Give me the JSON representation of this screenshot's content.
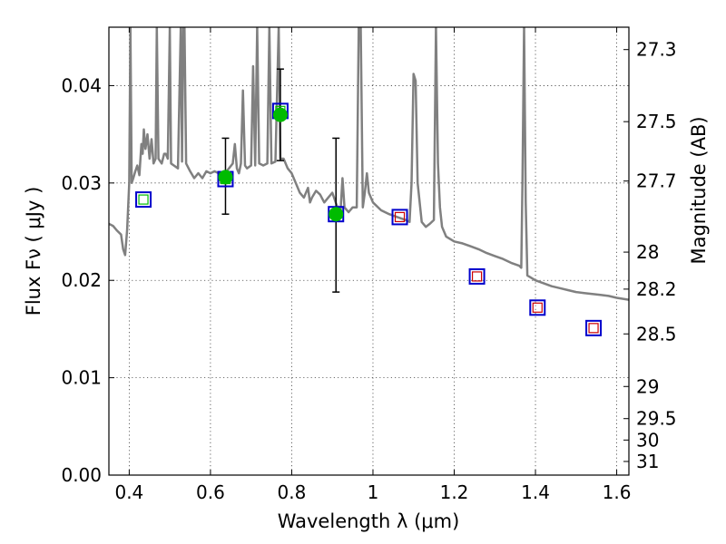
{
  "chart_data": {
    "type": "scatter",
    "title": "",
    "xlabel": "Wavelength  λ (μm)",
    "ylabel": "Flux  Fν  ( μJy )",
    "ylabel_right": "Magnitude (AB)",
    "xlim": [
      0.35,
      1.63
    ],
    "ylim": [
      0.0,
      0.046
    ],
    "grid": true,
    "x_ticks": [
      0.4,
      0.6,
      0.8,
      1.0,
      1.2,
      1.4,
      1.6
    ],
    "x_tick_labels": [
      "0.4",
      "0.6",
      "0.8",
      "1",
      "1.2",
      "1.4",
      "1.6"
    ],
    "y_ticks": [
      0.0,
      0.01,
      0.02,
      0.03,
      0.04
    ],
    "y_tick_labels": [
      "0.00",
      "0.01",
      "0.02",
      "0.03",
      "0.04"
    ],
    "right_ticks": [
      {
        "label": "27.3",
        "flux": 0.0437
      },
      {
        "label": "27.5",
        "flux": 0.0363
      },
      {
        "label": "27.7",
        "flux": 0.0302
      },
      {
        "label": "28",
        "flux": 0.0229
      },
      {
        "label": "28.2",
        "flux": 0.0191
      },
      {
        "label": "28.5",
        "flux": 0.0145
      },
      {
        "label": "29",
        "flux": 0.0091
      },
      {
        "label": "29.5",
        "flux": 0.0058
      },
      {
        "label": "30",
        "flux": 0.0036
      },
      {
        "label": "31",
        "flux": 0.0014
      }
    ],
    "series": [
      {
        "kind": "spectrum",
        "color": "#808080",
        "points": [
          [
            0.35,
            0.0258
          ],
          [
            0.36,
            0.0256
          ],
          [
            0.37,
            0.0251
          ],
          [
            0.38,
            0.0247
          ],
          [
            0.385,
            0.0232
          ],
          [
            0.39,
            0.0226
          ],
          [
            0.395,
            0.0252
          ],
          [
            0.4,
            0.03
          ],
          [
            0.403,
            0.046
          ],
          [
            0.406,
            0.03
          ],
          [
            0.41,
            0.0305
          ],
          [
            0.415,
            0.0312
          ],
          [
            0.42,
            0.0318
          ],
          [
            0.425,
            0.0308
          ],
          [
            0.43,
            0.034
          ],
          [
            0.433,
            0.033
          ],
          [
            0.436,
            0.0355
          ],
          [
            0.44,
            0.0335
          ],
          [
            0.445,
            0.035
          ],
          [
            0.45,
            0.0325
          ],
          [
            0.455,
            0.0345
          ],
          [
            0.46,
            0.032
          ],
          [
            0.465,
            0.0325
          ],
          [
            0.468,
            0.046
          ],
          [
            0.472,
            0.0325
          ],
          [
            0.48,
            0.032
          ],
          [
            0.486,
            0.033
          ],
          [
            0.49,
            0.033
          ],
          [
            0.495,
            0.0325
          ],
          [
            0.5,
            0.046
          ],
          [
            0.503,
            0.032
          ],
          [
            0.51,
            0.0318
          ],
          [
            0.52,
            0.0315
          ],
          [
            0.527,
            0.046
          ],
          [
            0.53,
            0.0322
          ],
          [
            0.533,
            0.046
          ],
          [
            0.536,
            0.046
          ],
          [
            0.54,
            0.032
          ],
          [
            0.55,
            0.0312
          ],
          [
            0.56,
            0.0305
          ],
          [
            0.57,
            0.031
          ],
          [
            0.58,
            0.0305
          ],
          [
            0.59,
            0.0312
          ],
          [
            0.6,
            0.031
          ],
          [
            0.61,
            0.0312
          ],
          [
            0.62,
            0.031
          ],
          [
            0.64,
            0.0312
          ],
          [
            0.655,
            0.032
          ],
          [
            0.66,
            0.034
          ],
          [
            0.665,
            0.0315
          ],
          [
            0.67,
            0.031
          ],
          [
            0.675,
            0.032
          ],
          [
            0.68,
            0.0395
          ],
          [
            0.685,
            0.0318
          ],
          [
            0.69,
            0.0315
          ],
          [
            0.7,
            0.0318
          ],
          [
            0.705,
            0.042
          ],
          [
            0.71,
            0.0318
          ],
          [
            0.715,
            0.046
          ],
          [
            0.72,
            0.032
          ],
          [
            0.73,
            0.0318
          ],
          [
            0.74,
            0.032
          ],
          [
            0.745,
            0.046
          ],
          [
            0.75,
            0.032
          ],
          [
            0.76,
            0.0322
          ],
          [
            0.768,
            0.046
          ],
          [
            0.772,
            0.0325
          ],
          [
            0.78,
            0.0325
          ],
          [
            0.79,
            0.0315
          ],
          [
            0.8,
            0.031
          ],
          [
            0.81,
            0.03
          ],
          [
            0.82,
            0.029
          ],
          [
            0.83,
            0.0285
          ],
          [
            0.84,
            0.0295
          ],
          [
            0.845,
            0.028
          ],
          [
            0.85,
            0.0285
          ],
          [
            0.86,
            0.0292
          ],
          [
            0.87,
            0.0288
          ],
          [
            0.88,
            0.028
          ],
          [
            0.89,
            0.0285
          ],
          [
            0.9,
            0.029
          ],
          [
            0.91,
            0.0278
          ],
          [
            0.92,
            0.027
          ],
          [
            0.925,
            0.0305
          ],
          [
            0.93,
            0.0275
          ],
          [
            0.94,
            0.027
          ],
          [
            0.95,
            0.0275
          ],
          [
            0.96,
            0.0275
          ],
          [
            0.965,
            0.046
          ],
          [
            0.97,
            0.046
          ],
          [
            0.975,
            0.0275
          ],
          [
            0.98,
            0.029
          ],
          [
            0.985,
            0.031
          ],
          [
            0.99,
            0.029
          ],
          [
            1.0,
            0.028
          ],
          [
            1.02,
            0.0272
          ],
          [
            1.04,
            0.0268
          ],
          [
            1.06,
            0.0265
          ],
          [
            1.08,
            0.0262
          ],
          [
            1.09,
            0.026
          ],
          [
            1.095,
            0.03
          ],
          [
            1.1,
            0.0412
          ],
          [
            1.105,
            0.0405
          ],
          [
            1.11,
            0.03
          ],
          [
            1.12,
            0.026
          ],
          [
            1.13,
            0.0255
          ],
          [
            1.14,
            0.0258
          ],
          [
            1.15,
            0.0262
          ],
          [
            1.155,
            0.046
          ],
          [
            1.16,
            0.032
          ],
          [
            1.165,
            0.0275
          ],
          [
            1.17,
            0.0255
          ],
          [
            1.18,
            0.0245
          ],
          [
            1.2,
            0.024
          ],
          [
            1.22,
            0.0238
          ],
          [
            1.24,
            0.0235
          ],
          [
            1.26,
            0.0232
          ],
          [
            1.28,
            0.0228
          ],
          [
            1.3,
            0.0225
          ],
          [
            1.32,
            0.0222
          ],
          [
            1.34,
            0.0218
          ],
          [
            1.36,
            0.0215
          ],
          [
            1.365,
            0.0213
          ],
          [
            1.368,
            0.03
          ],
          [
            1.372,
            0.046
          ],
          [
            1.376,
            0.028
          ],
          [
            1.38,
            0.0205
          ],
          [
            1.4,
            0.02
          ],
          [
            1.42,
            0.0197
          ],
          [
            1.44,
            0.0194
          ],
          [
            1.46,
            0.0192
          ],
          [
            1.48,
            0.019
          ],
          [
            1.5,
            0.0188
          ],
          [
            1.52,
            0.0187
          ],
          [
            1.54,
            0.0186
          ],
          [
            1.56,
            0.0185
          ],
          [
            1.58,
            0.0184
          ],
          [
            1.6,
            0.0182
          ],
          [
            1.63,
            0.018
          ]
        ]
      },
      {
        "kind": "photometry",
        "marker": "circle",
        "color": "#00bb00",
        "points": [
          {
            "x": 0.637,
            "y": 0.0306,
            "err_low": 0.0268,
            "err_high": 0.0346
          },
          {
            "x": 0.772,
            "y": 0.037,
            "err_low": 0.0323,
            "err_high": 0.0417
          },
          {
            "x": 0.909,
            "y": 0.0268,
            "err_low": 0.0188,
            "err_high": 0.0346
          }
        ]
      },
      {
        "kind": "model-photometry",
        "marker": "square",
        "edge_color": "#0000cc",
        "points": [
          {
            "x": 0.435,
            "y": 0.0283,
            "inner": "#00bb00"
          },
          {
            "x": 0.637,
            "y": 0.0304,
            "inner": "#00bb00"
          },
          {
            "x": 0.772,
            "y": 0.0374,
            "inner": "#00bb00"
          },
          {
            "x": 0.909,
            "y": 0.0268,
            "inner": "#00bb00"
          },
          {
            "x": 1.066,
            "y": 0.0265,
            "inner": "#cc0000"
          },
          {
            "x": 1.256,
            "y": 0.0204,
            "inner": "#cc0000"
          },
          {
            "x": 1.405,
            "y": 0.0172,
            "inner": "#cc0000"
          },
          {
            "x": 1.543,
            "y": 0.0151,
            "inner": "#cc0000"
          }
        ]
      }
    ]
  }
}
